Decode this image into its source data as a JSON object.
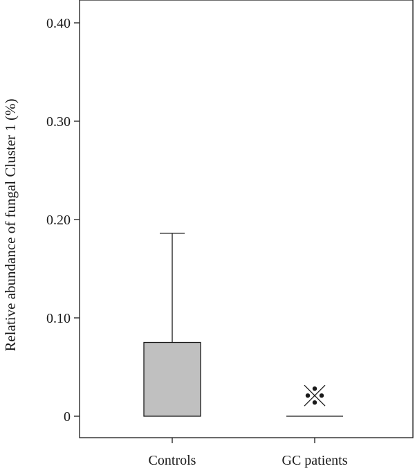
{
  "chart_data": {
    "type": "box",
    "ylabel": "Relative abundance of fungal Cluster 1 (%)",
    "ylim": [
      0,
      0.4
    ],
    "yticks": [
      {
        "value": 0.4,
        "label": "0.40"
      },
      {
        "value": 0.3,
        "label": "0.30"
      },
      {
        "value": 0.2,
        "label": "0.20"
      },
      {
        "value": 0.1,
        "label": "0.10"
      },
      {
        "value": 0,
        "label": "0"
      }
    ],
    "categories": [
      "Controls",
      "GC patients"
    ],
    "boxes": [
      {
        "category": "Controls",
        "q1": 0.0,
        "median": 0.0,
        "q3": 0.075,
        "whisker_low": 0.0,
        "whisker_high": 0.186,
        "fill": "#c0c0c0"
      },
      {
        "category": "GC patients",
        "q1": 0.0,
        "median": 0.0,
        "q3": 0.0,
        "whisker_low": 0.0,
        "whisker_high": 0.0,
        "fill": "#c0c0c0"
      }
    ],
    "annotations": [
      {
        "category": "GC patients",
        "value": 0.021,
        "symbol": "※"
      }
    ],
    "grid": false,
    "colors": {
      "axis": "#1a1a1a",
      "box_fill": "#c0c0c0"
    }
  }
}
